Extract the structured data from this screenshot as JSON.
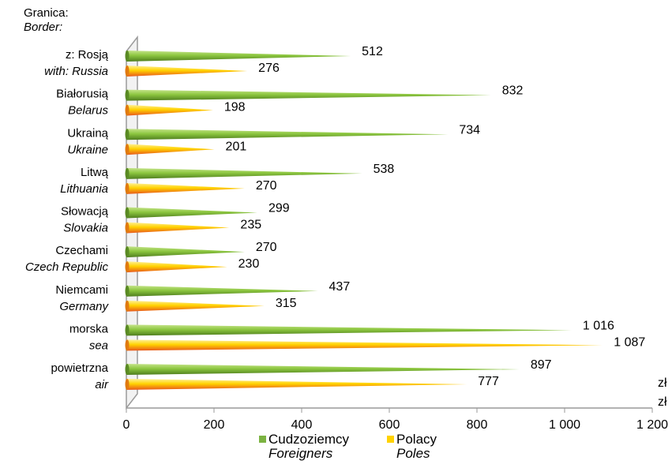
{
  "chart_data": {
    "type": "bar",
    "orientation": "horizontal",
    "title_line1": "Granica:",
    "title_line2": "Border:",
    "unit_label": "zł",
    "categories": [
      {
        "pl": "z: Rosją",
        "en": "with: Russia"
      },
      {
        "pl": "Białorusią",
        "en": "Belarus"
      },
      {
        "pl": "Ukrainą",
        "en": "Ukraine"
      },
      {
        "pl": "Litwą",
        "en": "Lithuania"
      },
      {
        "pl": "Słowacją",
        "en": "Slovakia"
      },
      {
        "pl": "Czechami",
        "en": "Czech Republic"
      },
      {
        "pl": "Niemcami",
        "en": "Germany"
      },
      {
        "pl": "morska",
        "en": "sea"
      },
      {
        "pl": "powietrzna",
        "en": "air"
      }
    ],
    "series": [
      {
        "name_pl": "Cudzoziemcy",
        "name_en": "Foreigners",
        "color": "#7cb342",
        "values": [
          512,
          832,
          734,
          538,
          299,
          270,
          437,
          1016,
          897
        ],
        "labels": [
          "512",
          "832",
          "734",
          "538",
          "299",
          "270",
          "437",
          "1 016",
          "897"
        ]
      },
      {
        "name_pl": "Polacy",
        "name_en": "Poles",
        "color": "#f5b800",
        "values": [
          276,
          198,
          201,
          270,
          235,
          230,
          315,
          1087,
          777
        ],
        "labels": [
          "276",
          "198",
          "201",
          "270",
          "235",
          "230",
          "315",
          "1 087",
          "777"
        ]
      }
    ],
    "xlim": [
      0,
      1200
    ],
    "xticks": [
      0,
      200,
      400,
      600,
      800,
      1000,
      1200
    ],
    "xtick_labels": [
      "0",
      "200",
      "400",
      "600",
      "800",
      "1 000",
      "1 200"
    ],
    "grid": false,
    "legend_position": "bottom"
  }
}
